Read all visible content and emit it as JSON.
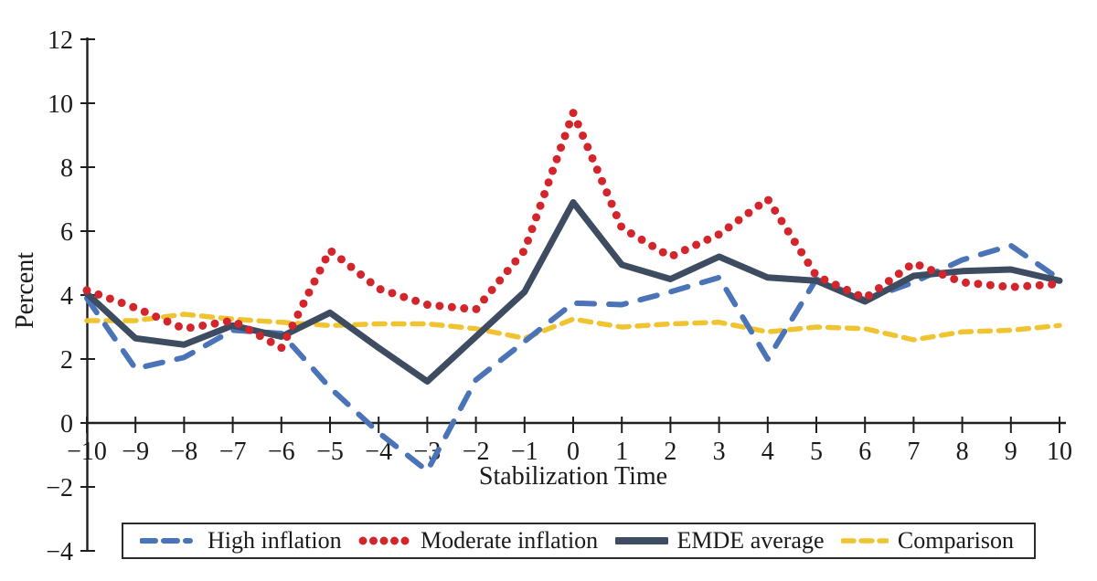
{
  "chart_data": {
    "type": "line",
    "title": "",
    "xlabel": "Stabilization Time",
    "ylabel": "Percent",
    "xlim": [
      -10,
      10
    ],
    "ylim": [
      -4,
      12
    ],
    "xticks": [
      -10,
      -9,
      -8,
      -7,
      -6,
      -5,
      -4,
      -3,
      -2,
      -1,
      0,
      1,
      2,
      3,
      4,
      5,
      6,
      7,
      8,
      9,
      10
    ],
    "yticks": [
      -4,
      -2,
      0,
      2,
      4,
      6,
      8,
      10,
      12
    ],
    "grid": "off",
    "legend_position": "bottom",
    "x": [
      -10,
      -9,
      -8,
      -7,
      -6,
      -5,
      -4,
      -3,
      -2,
      -1,
      0,
      1,
      2,
      3,
      4,
      5,
      6,
      7,
      8,
      9,
      10
    ],
    "series": [
      {
        "name": "High inflation",
        "style": "dashed",
        "color": "#4a73b8",
        "values": [
          3.9,
          1.7,
          2.05,
          2.9,
          2.8,
          1.1,
          -0.3,
          -1.5,
          1.35,
          2.55,
          3.75,
          3.7,
          4.1,
          4.55,
          2.0,
          4.5,
          3.85,
          4.4,
          5.1,
          5.55,
          4.5
        ]
      },
      {
        "name": "Moderate inflation",
        "style": "dotted",
        "color": "#d2252c",
        "values": [
          4.15,
          3.6,
          2.95,
          3.2,
          2.35,
          5.4,
          4.2,
          3.7,
          3.55,
          5.4,
          9.7,
          6.1,
          5.2,
          5.9,
          7.0,
          4.6,
          3.9,
          5.0,
          4.4,
          4.25,
          4.35
        ]
      },
      {
        "name": "EMDE average",
        "style": "solid",
        "color": "#3e4c61",
        "values": [
          4.05,
          2.65,
          2.45,
          3.05,
          2.7,
          3.45,
          2.35,
          1.3,
          2.7,
          4.1,
          6.9,
          4.95,
          4.5,
          5.2,
          4.55,
          4.45,
          3.8,
          4.6,
          4.75,
          4.8,
          4.45
        ]
      },
      {
        "name": "Comparison",
        "style": "dashed-short",
        "color": "#f0c430",
        "values": [
          3.2,
          3.2,
          3.4,
          3.25,
          3.15,
          3.05,
          3.1,
          3.1,
          2.95,
          2.65,
          3.25,
          3.0,
          3.1,
          3.15,
          2.85,
          3.0,
          2.95,
          2.6,
          2.85,
          2.9,
          3.05
        ]
      }
    ],
    "axis_color": "#1f1f1f"
  },
  "legend": {
    "items": [
      {
        "label": "High inflation"
      },
      {
        "label": "Moderate inflation"
      },
      {
        "label": "EMDE average"
      },
      {
        "label": "Comparison"
      }
    ]
  }
}
